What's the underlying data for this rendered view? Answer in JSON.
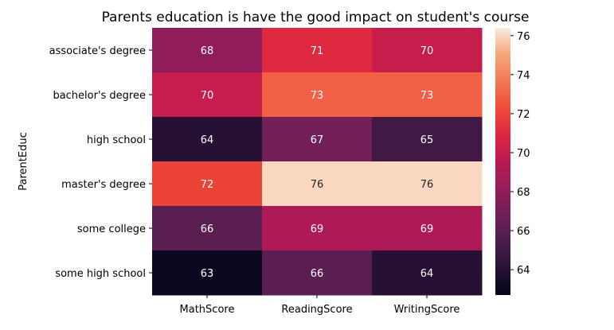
{
  "chart_data": {
    "type": "heatmap",
    "title": "Parents education is have the good impact on student's course",
    "ylabel": "ParentEduc",
    "xlabel": "",
    "x_categories": [
      "MathScore",
      "ReadingScore",
      "WritingScore"
    ],
    "y_categories": [
      "associate's degree",
      "bachelor's degree",
      "high school",
      "master's degree",
      "some college",
      "some high school"
    ],
    "values": [
      [
        68,
        71,
        70
      ],
      [
        70,
        73,
        73
      ],
      [
        64,
        67,
        65
      ],
      [
        72,
        76,
        76
      ],
      [
        66,
        69,
        69
      ],
      [
        63,
        66,
        64
      ]
    ],
    "annotations": [
      [
        "68",
        "71",
        "70"
      ],
      [
        "70",
        "73",
        "73"
      ],
      [
        "64",
        "67",
        "65"
      ],
      [
        "72",
        "76",
        "76"
      ],
      [
        "66",
        "69",
        "69"
      ],
      [
        "63",
        "66",
        "64"
      ]
    ],
    "colorbar": {
      "range": [
        62.7,
        76.4
      ],
      "ticks": [
        64,
        66,
        68,
        70,
        72,
        74,
        76
      ],
      "tick_labels": [
        "64",
        "66",
        "68",
        "70",
        "72",
        "74",
        "76"
      ],
      "colormap": "rocket"
    },
    "grid": false,
    "legend": "colorbar-right"
  }
}
